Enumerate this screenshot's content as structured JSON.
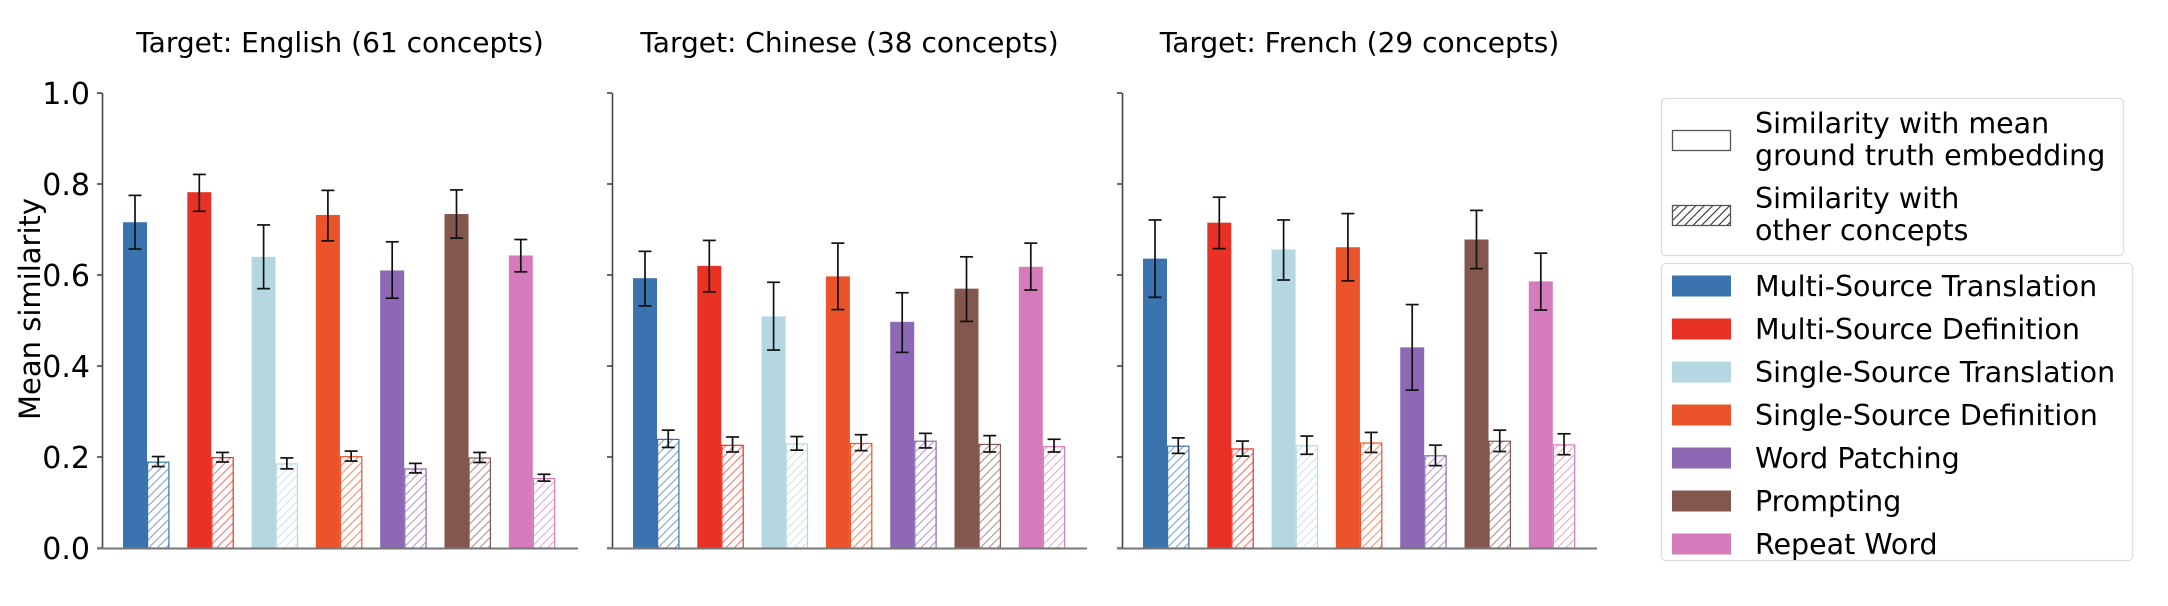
{
  "chart_data": {
    "type": "bar",
    "ylabel": "Mean similarity",
    "ylim": [
      0.0,
      1.0
    ],
    "yticks": [
      "0.0",
      "0.2",
      "0.4",
      "0.6",
      "0.8",
      "1.0"
    ],
    "grid": false,
    "legend_position": "right (outside)",
    "methods": [
      {
        "name": "Multi-Source Translation",
        "color": "#3a73ad"
      },
      {
        "name": "Multi-Source Definition",
        "color": "#e83225"
      },
      {
        "name": "Single-Source Translation",
        "color": "#b4d7e2"
      },
      {
        "name": "Single-Source Definition",
        "color": "#eb542a"
      },
      {
        "name": "Word Patching",
        "color": "#8d69b5"
      },
      {
        "name": "Prompting",
        "color": "#83574d"
      },
      {
        "name": "Repeat Word",
        "color": "#d57bbb"
      }
    ],
    "style_legend": [
      {
        "name": "Similarity with mean\nground truth embedding",
        "lines": [
          "Similarity with mean",
          "ground truth embedding"
        ],
        "style": "solid"
      },
      {
        "name": "Similarity with\nother concepts",
        "lines": [
          "Similarity with",
          "other concepts"
        ],
        "style": "hatched"
      }
    ],
    "panels": [
      {
        "title": "Target: English (61 concepts)",
        "series": [
          {
            "name": "Similarity with mean ground truth embedding",
            "values": [
              0.716,
              0.782,
              0.64,
              0.732,
              0.61,
              0.734,
              0.643
            ],
            "err_low": [
              0.657,
              0.74,
              0.57,
              0.675,
              0.549,
              0.681,
              0.607
            ],
            "err_high": [
              0.775,
              0.821,
              0.71,
              0.786,
              0.673,
              0.787,
              0.678
            ]
          },
          {
            "name": "Similarity with other concepts",
            "values": [
              0.19,
              0.2,
              0.186,
              0.202,
              0.175,
              0.199,
              0.154
            ],
            "err_low": [
              0.179,
              0.189,
              0.174,
              0.191,
              0.165,
              0.188,
              0.147
            ],
            "err_high": [
              0.201,
              0.21,
              0.198,
              0.213,
              0.186,
              0.21,
              0.162
            ]
          }
        ]
      },
      {
        "title": "Target: Chinese (38 concepts)",
        "series": [
          {
            "name": "Similarity with mean ground truth embedding",
            "values": [
              0.593,
              0.62,
              0.509,
              0.597,
              0.497,
              0.57,
              0.618
            ],
            "err_low": [
              0.532,
              0.563,
              0.435,
              0.524,
              0.43,
              0.498,
              0.567
            ],
            "err_high": [
              0.652,
              0.676,
              0.584,
              0.67,
              0.561,
              0.64,
              0.67
            ]
          },
          {
            "name": "Similarity with other concepts",
            "values": [
              0.24,
              0.227,
              0.23,
              0.231,
              0.236,
              0.229,
              0.224
            ],
            "err_low": [
              0.221,
              0.211,
              0.215,
              0.214,
              0.22,
              0.211,
              0.211
            ],
            "err_high": [
              0.259,
              0.244,
              0.245,
              0.249,
              0.252,
              0.247,
              0.239
            ]
          }
        ]
      },
      {
        "title": "Target: French (29 concepts)",
        "series": [
          {
            "name": "Similarity with mean ground truth embedding",
            "values": [
              0.636,
              0.715,
              0.656,
              0.661,
              0.441,
              0.678,
              0.586
            ],
            "err_low": [
              0.551,
              0.658,
              0.589,
              0.587,
              0.347,
              0.614,
              0.523
            ],
            "err_high": [
              0.721,
              0.771,
              0.721,
              0.735,
              0.535,
              0.742,
              0.648
            ]
          },
          {
            "name": "Similarity with other concepts",
            "values": [
              0.225,
              0.219,
              0.226,
              0.232,
              0.204,
              0.236,
              0.228
            ],
            "err_low": [
              0.208,
              0.202,
              0.206,
              0.21,
              0.181,
              0.212,
              0.205
            ],
            "err_high": [
              0.242,
              0.235,
              0.246,
              0.254,
              0.226,
              0.259,
              0.251
            ]
          }
        ]
      }
    ]
  }
}
